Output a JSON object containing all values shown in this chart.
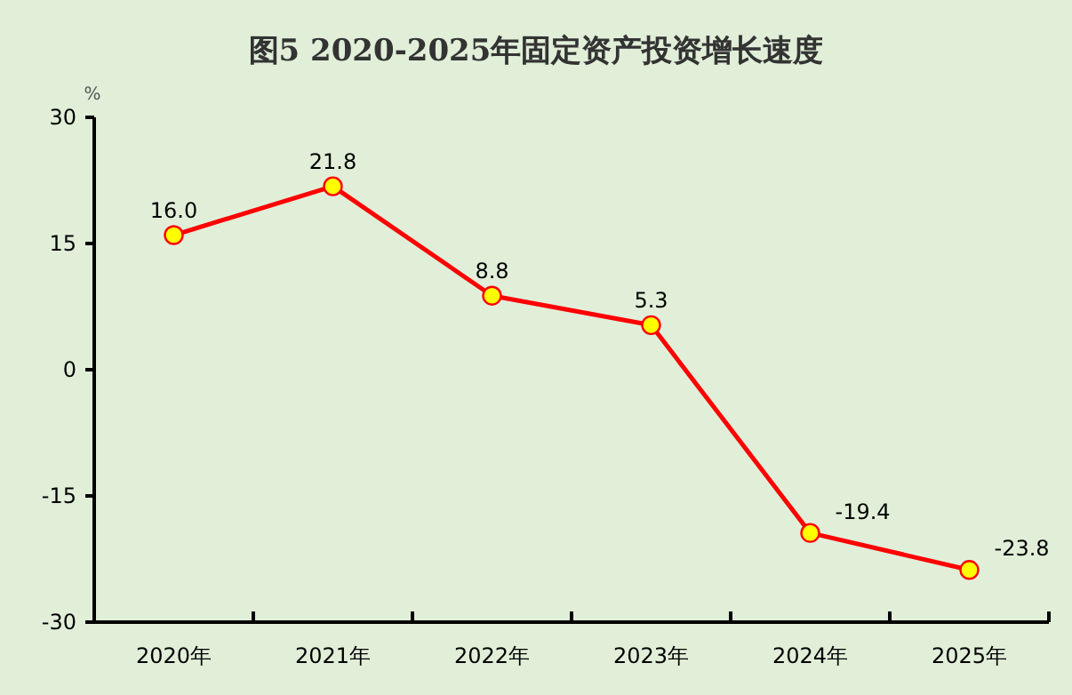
{
  "chart_data": {
    "type": "line",
    "title": "图5   2020-2025年固定资产投资增长速度",
    "ylabel": "%",
    "categories": [
      "2020年",
      "2021年",
      "2022年",
      "2023年",
      "2024年",
      "2025年"
    ],
    "values": [
      16.0,
      21.8,
      8.8,
      5.3,
      -19.4,
      -23.8
    ],
    "value_labels": [
      "16.0",
      "21.8",
      "8.8",
      "5.3",
      "-19.4",
      "-23.8"
    ],
    "color": "#ff0000",
    "marker": "circle",
    "line_style": "solid",
    "ylim": [
      -30,
      30
    ],
    "yticks": [
      -30,
      -15,
      0,
      15,
      30
    ]
  }
}
